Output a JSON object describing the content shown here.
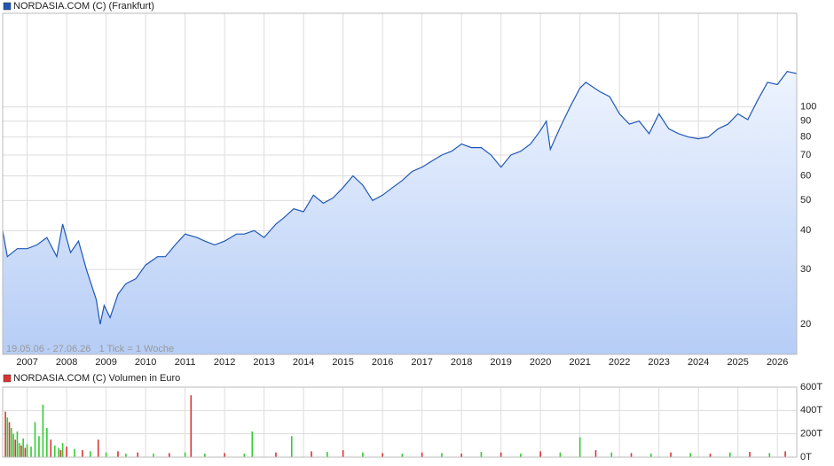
{
  "chart_data": [
    {
      "type": "line",
      "title": "NORDASIA.COM (C) (Frankfurt)",
      "annotation": "19.05.06 - 27.06.26   1 Tick = 1 Woche",
      "color": "#1f57b8",
      "log_y": true,
      "grid": true,
      "xlim": [
        2006.38,
        2026.49
      ],
      "ylim": [
        16,
        200
      ],
      "xticks": [
        2007,
        2008,
        2009,
        2010,
        2011,
        2012,
        2013,
        2014,
        2015,
        2016,
        2017,
        2018,
        2019,
        2020,
        2021,
        2022,
        2023,
        2024,
        2025,
        2026
      ],
      "yticks": [
        20,
        30,
        40,
        50,
        60,
        70,
        80,
        90,
        100
      ],
      "x": [
        2006.38,
        2006.5,
        2006.75,
        2007.0,
        2007.25,
        2007.5,
        2007.75,
        2007.9,
        2008.1,
        2008.3,
        2008.5,
        2008.75,
        2008.85,
        2008.95,
        2009.1,
        2009.3,
        2009.5,
        2009.75,
        2010.0,
        2010.3,
        2010.5,
        2010.75,
        2011.0,
        2011.3,
        2011.5,
        2011.75,
        2012.0,
        2012.3,
        2012.5,
        2012.75,
        2013.0,
        2013.3,
        2013.5,
        2013.75,
        2014.0,
        2014.25,
        2014.5,
        2014.75,
        2015.0,
        2015.25,
        2015.5,
        2015.75,
        2016.0,
        2016.25,
        2016.5,
        2016.75,
        2017.0,
        2017.25,
        2017.5,
        2017.75,
        2018.0,
        2018.25,
        2018.5,
        2018.75,
        2019.0,
        2019.25,
        2019.5,
        2019.75,
        2020.0,
        2020.15,
        2020.25,
        2020.5,
        2020.75,
        2021.0,
        2021.15,
        2021.5,
        2021.75,
        2022.0,
        2022.25,
        2022.5,
        2022.75,
        2023.0,
        2023.25,
        2023.5,
        2023.75,
        2024.0,
        2024.25,
        2024.5,
        2024.75,
        2025.0,
        2025.25,
        2025.5,
        2025.75,
        2026.0,
        2026.25,
        2026.49
      ],
      "values": [
        40,
        33,
        35,
        35,
        36,
        38,
        33,
        42,
        34,
        37,
        30,
        24,
        20,
        23,
        21,
        25,
        27,
        28,
        31,
        33,
        33,
        36,
        39,
        38,
        37,
        36,
        37,
        39,
        39,
        40,
        38,
        42,
        44,
        47,
        46,
        52,
        49,
        51,
        55,
        60,
        56,
        50,
        52,
        55,
        58,
        62,
        64,
        67,
        70,
        72,
        76,
        74,
        74,
        70,
        64,
        70,
        72,
        76,
        84,
        90,
        73,
        86,
        100,
        115,
        120,
        112,
        108,
        95,
        88,
        90,
        82,
        95,
        85,
        82,
        80,
        79,
        80,
        85,
        88,
        95,
        91,
        105,
        120,
        118,
        130,
        128
      ]
    },
    {
      "type": "bar",
      "title": "NORDASIA.COM (C) Volumen in Euro",
      "grid": true,
      "xlim": [
        2006.38,
        2026.49
      ],
      "ylim": [
        0,
        600000
      ],
      "xticks": [
        2007,
        2008,
        2009,
        2010,
        2011,
        2012,
        2013,
        2014,
        2015,
        2016,
        2017,
        2018,
        2019,
        2020,
        2021,
        2022,
        2023,
        2024,
        2025,
        2026
      ],
      "yticks": [
        {
          "value": 0,
          "label": "0T"
        },
        {
          "value": 200000,
          "label": "200T"
        },
        {
          "value": 400000,
          "label": "400T"
        },
        {
          "value": 600000,
          "label": "600T"
        }
      ],
      "x": [
        2006.45,
        2006.5,
        2006.55,
        2006.6,
        2006.65,
        2006.7,
        2006.75,
        2006.8,
        2006.85,
        2006.9,
        2006.95,
        2007.0,
        2007.1,
        2007.2,
        2007.3,
        2007.4,
        2007.5,
        2007.6,
        2007.7,
        2007.8,
        2007.85,
        2007.9,
        2008.0,
        2008.2,
        2008.4,
        2008.6,
        2008.8,
        2009.0,
        2009.3,
        2009.5,
        2009.8,
        2010.2,
        2010.6,
        2011.0,
        2011.15,
        2011.5,
        2012.0,
        2012.5,
        2012.7,
        2013.3,
        2013.7,
        2014.2,
        2014.6,
        2015.0,
        2015.5,
        2016.0,
        2016.5,
        2017.0,
        2017.5,
        2018.0,
        2018.5,
        2019.0,
        2019.5,
        2020.0,
        2020.5,
        2021.0,
        2021.4,
        2021.8,
        2022.3,
        2022.8,
        2023.3,
        2023.8,
        2024.3,
        2024.8,
        2025.3,
        2025.8,
        2026.2
      ],
      "values": [
        390000,
        340000,
        300000,
        250000,
        200000,
        150000,
        220000,
        120000,
        100000,
        160000,
        80000,
        110000,
        90000,
        300000,
        180000,
        450000,
        250000,
        150000,
        100000,
        80000,
        60000,
        120000,
        90000,
        70000,
        60000,
        50000,
        150000,
        40000,
        50000,
        30000,
        40000,
        30000,
        35000,
        40000,
        530000,
        30000,
        35000,
        30000,
        220000,
        40000,
        180000,
        50000,
        45000,
        60000,
        40000,
        35000,
        30000,
        40000,
        35000,
        30000,
        45000,
        40000,
        30000,
        50000,
        40000,
        170000,
        60000,
        40000,
        35000,
        30000,
        40000,
        35000,
        30000,
        40000,
        45000,
        35000,
        50000
      ],
      "colors": [
        "#d33",
        "#3c3",
        "#d33",
        "#3c3",
        "#3c3",
        "#d33",
        "#3c3",
        "#3c3",
        "#d33",
        "#3c3",
        "#d33",
        "#3c3",
        "#3c3",
        "#3c3",
        "#3c3",
        "#3c3",
        "#3c3",
        "#d33",
        "#3c3",
        "#3c3",
        "#d33",
        "#3c3",
        "#d33",
        "#3c3",
        "#d33",
        "#3c3",
        "#d33",
        "#3c3",
        "#d33",
        "#3c3",
        "#d33",
        "#3c3",
        "#d33",
        "#3c3",
        "#d33",
        "#3c3",
        "#d33",
        "#3c3",
        "#3c3",
        "#d33",
        "#3c3",
        "#d33",
        "#3c3",
        "#d33",
        "#3c3",
        "#d33",
        "#3c3",
        "#d33",
        "#3c3",
        "#d33",
        "#3c3",
        "#d33",
        "#3c3",
        "#d33",
        "#3c3",
        "#3c3",
        "#d33",
        "#3c3",
        "#d33",
        "#3c3",
        "#d33",
        "#3c3",
        "#d33",
        "#3c3",
        "#d33",
        "#3c3",
        "#d33"
      ]
    }
  ]
}
